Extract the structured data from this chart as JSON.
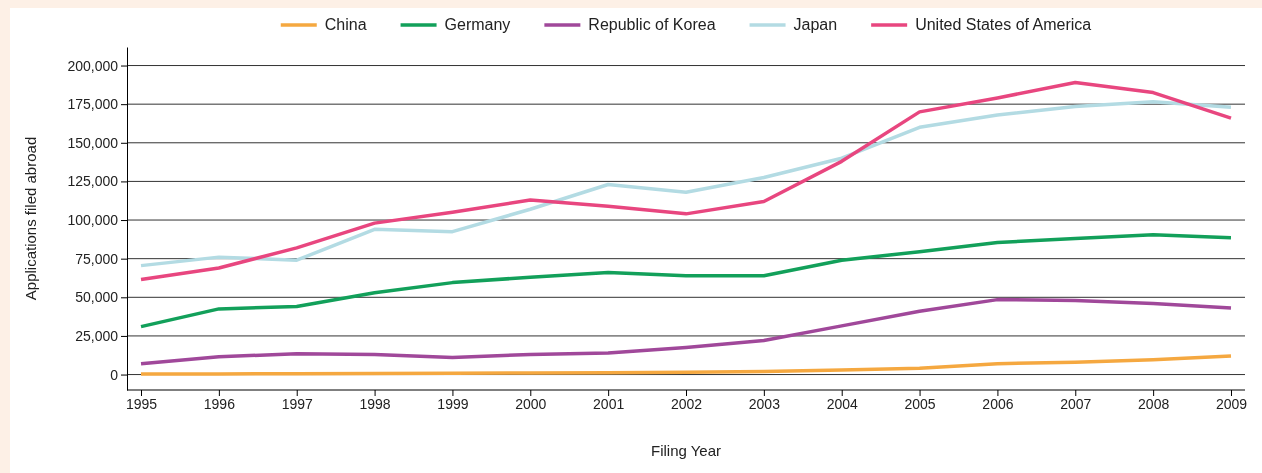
{
  "chart_data": {
    "type": "line",
    "xlabel": "Filing Year",
    "ylabel": "Applications filed abroad",
    "categories": [
      "1995",
      "1996",
      "1997",
      "1998",
      "1999",
      "2000",
      "2001",
      "2002",
      "2003",
      "2004",
      "2005",
      "2006",
      "2007",
      "2008",
      "2009"
    ],
    "series": [
      {
        "name": "China",
        "color": "#f5a840",
        "values": [
          300,
          400,
          500,
          600,
          800,
          1000,
          1200,
          1500,
          2000,
          3000,
          4000,
          7000,
          8000,
          9500,
          12000
        ]
      },
      {
        "name": "Germany",
        "color": "#12a05a",
        "values": [
          31000,
          42500,
          44000,
          53000,
          59500,
          63000,
          66000,
          64000,
          64000,
          74000,
          79500,
          85500,
          88000,
          90500,
          88500
        ]
      },
      {
        "name": "Republic of Korea",
        "color": "#a0489a",
        "values": [
          7000,
          11500,
          13500,
          13000,
          11000,
          13000,
          14000,
          17500,
          22000,
          31500,
          41000,
          48500,
          48000,
          46000,
          43000
        ]
      },
      {
        "name": "Japan",
        "color": "#b3dbe3",
        "values": [
          70500,
          76000,
          74000,
          94000,
          92500,
          107000,
          123000,
          118000,
          127500,
          140000,
          160000,
          168000,
          173500,
          176500,
          173000
        ]
      },
      {
        "name": "United States of America",
        "color": "#e8467f",
        "values": [
          61500,
          69000,
          82000,
          98000,
          105000,
          113000,
          109000,
          104000,
          112000,
          138000,
          170000,
          179000,
          189000,
          182500,
          166000
        ]
      }
    ],
    "ylim": [
      -10000,
      212000
    ],
    "yticks": [
      {
        "value": 0,
        "label": "0"
      },
      {
        "value": 25000,
        "label": "25,000"
      },
      {
        "value": 50000,
        "label": "50,000"
      },
      {
        "value": 75000,
        "label": "75,000"
      },
      {
        "value": 100000,
        "label": "100,000"
      },
      {
        "value": 125000,
        "label": "125,000"
      },
      {
        "value": 150000,
        "label": "150,000"
      },
      {
        "value": 175000,
        "label": "175,000"
      },
      {
        "value": 200000,
        "label": "200,000"
      }
    ],
    "grid": "y",
    "legend": "top",
    "line_style": "solid",
    "marker": "none"
  }
}
